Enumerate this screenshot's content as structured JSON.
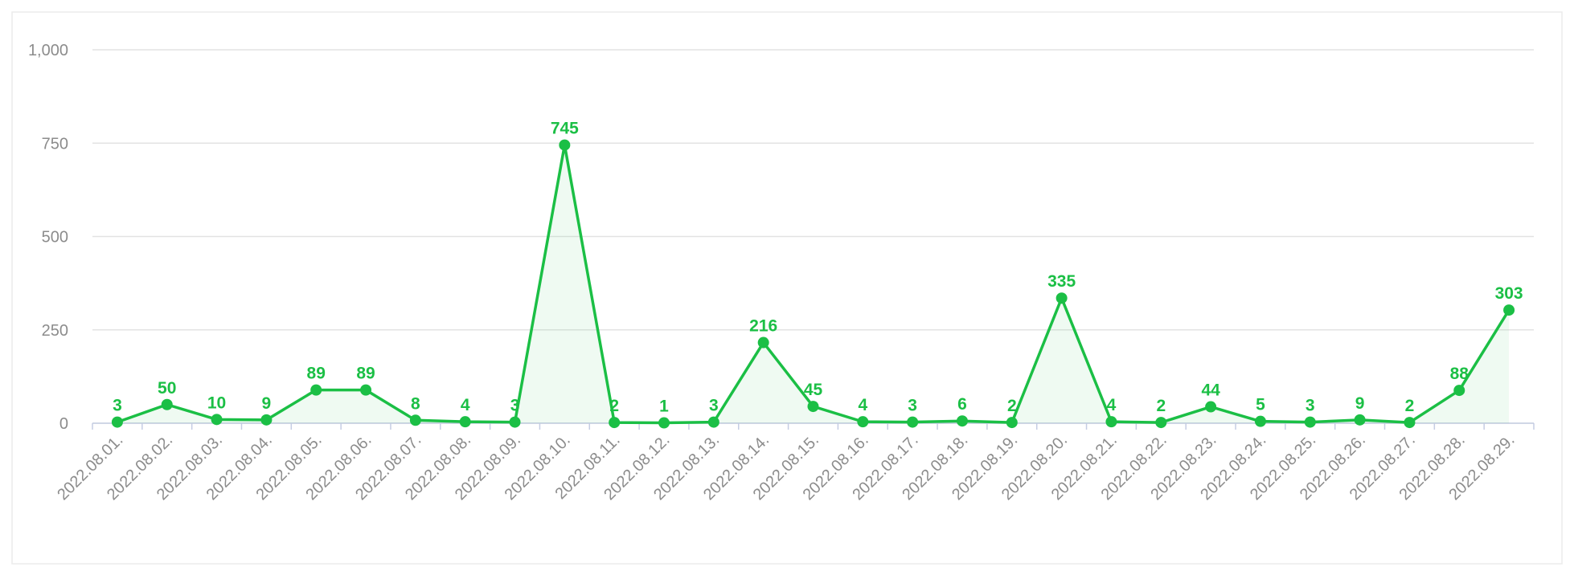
{
  "chart_data": {
    "type": "line",
    "categories": [
      "2022.08.01.",
      "2022.08.02.",
      "2022.08.03.",
      "2022.08.04.",
      "2022.08.05.",
      "2022.08.06.",
      "2022.08.07.",
      "2022.08.08.",
      "2022.08.09.",
      "2022.08.10.",
      "2022.08.11.",
      "2022.08.12.",
      "2022.08.13.",
      "2022.08.14.",
      "2022.08.15.",
      "2022.08.16.",
      "2022.08.17.",
      "2022.08.18.",
      "2022.08.19.",
      "2022.08.20.",
      "2022.08.21.",
      "2022.08.22.",
      "2022.08.23.",
      "2022.08.24.",
      "2022.08.25.",
      "2022.08.26.",
      "2022.08.27.",
      "2022.08.28.",
      "2022.08.29."
    ],
    "values": [
      3,
      50,
      10,
      9,
      89,
      89,
      8,
      4,
      3,
      745,
      2,
      1,
      3,
      216,
      45,
      4,
      3,
      6,
      2,
      335,
      4,
      2,
      44,
      5,
      3,
      9,
      2,
      88,
      303
    ],
    "color": "#1bbf45",
    "ylim": [
      0,
      1000
    ],
    "yticks": [
      0,
      250,
      500,
      750,
      {
        "value": 1000,
        "label": "1,000"
      }
    ],
    "grid": true,
    "area": true
  }
}
